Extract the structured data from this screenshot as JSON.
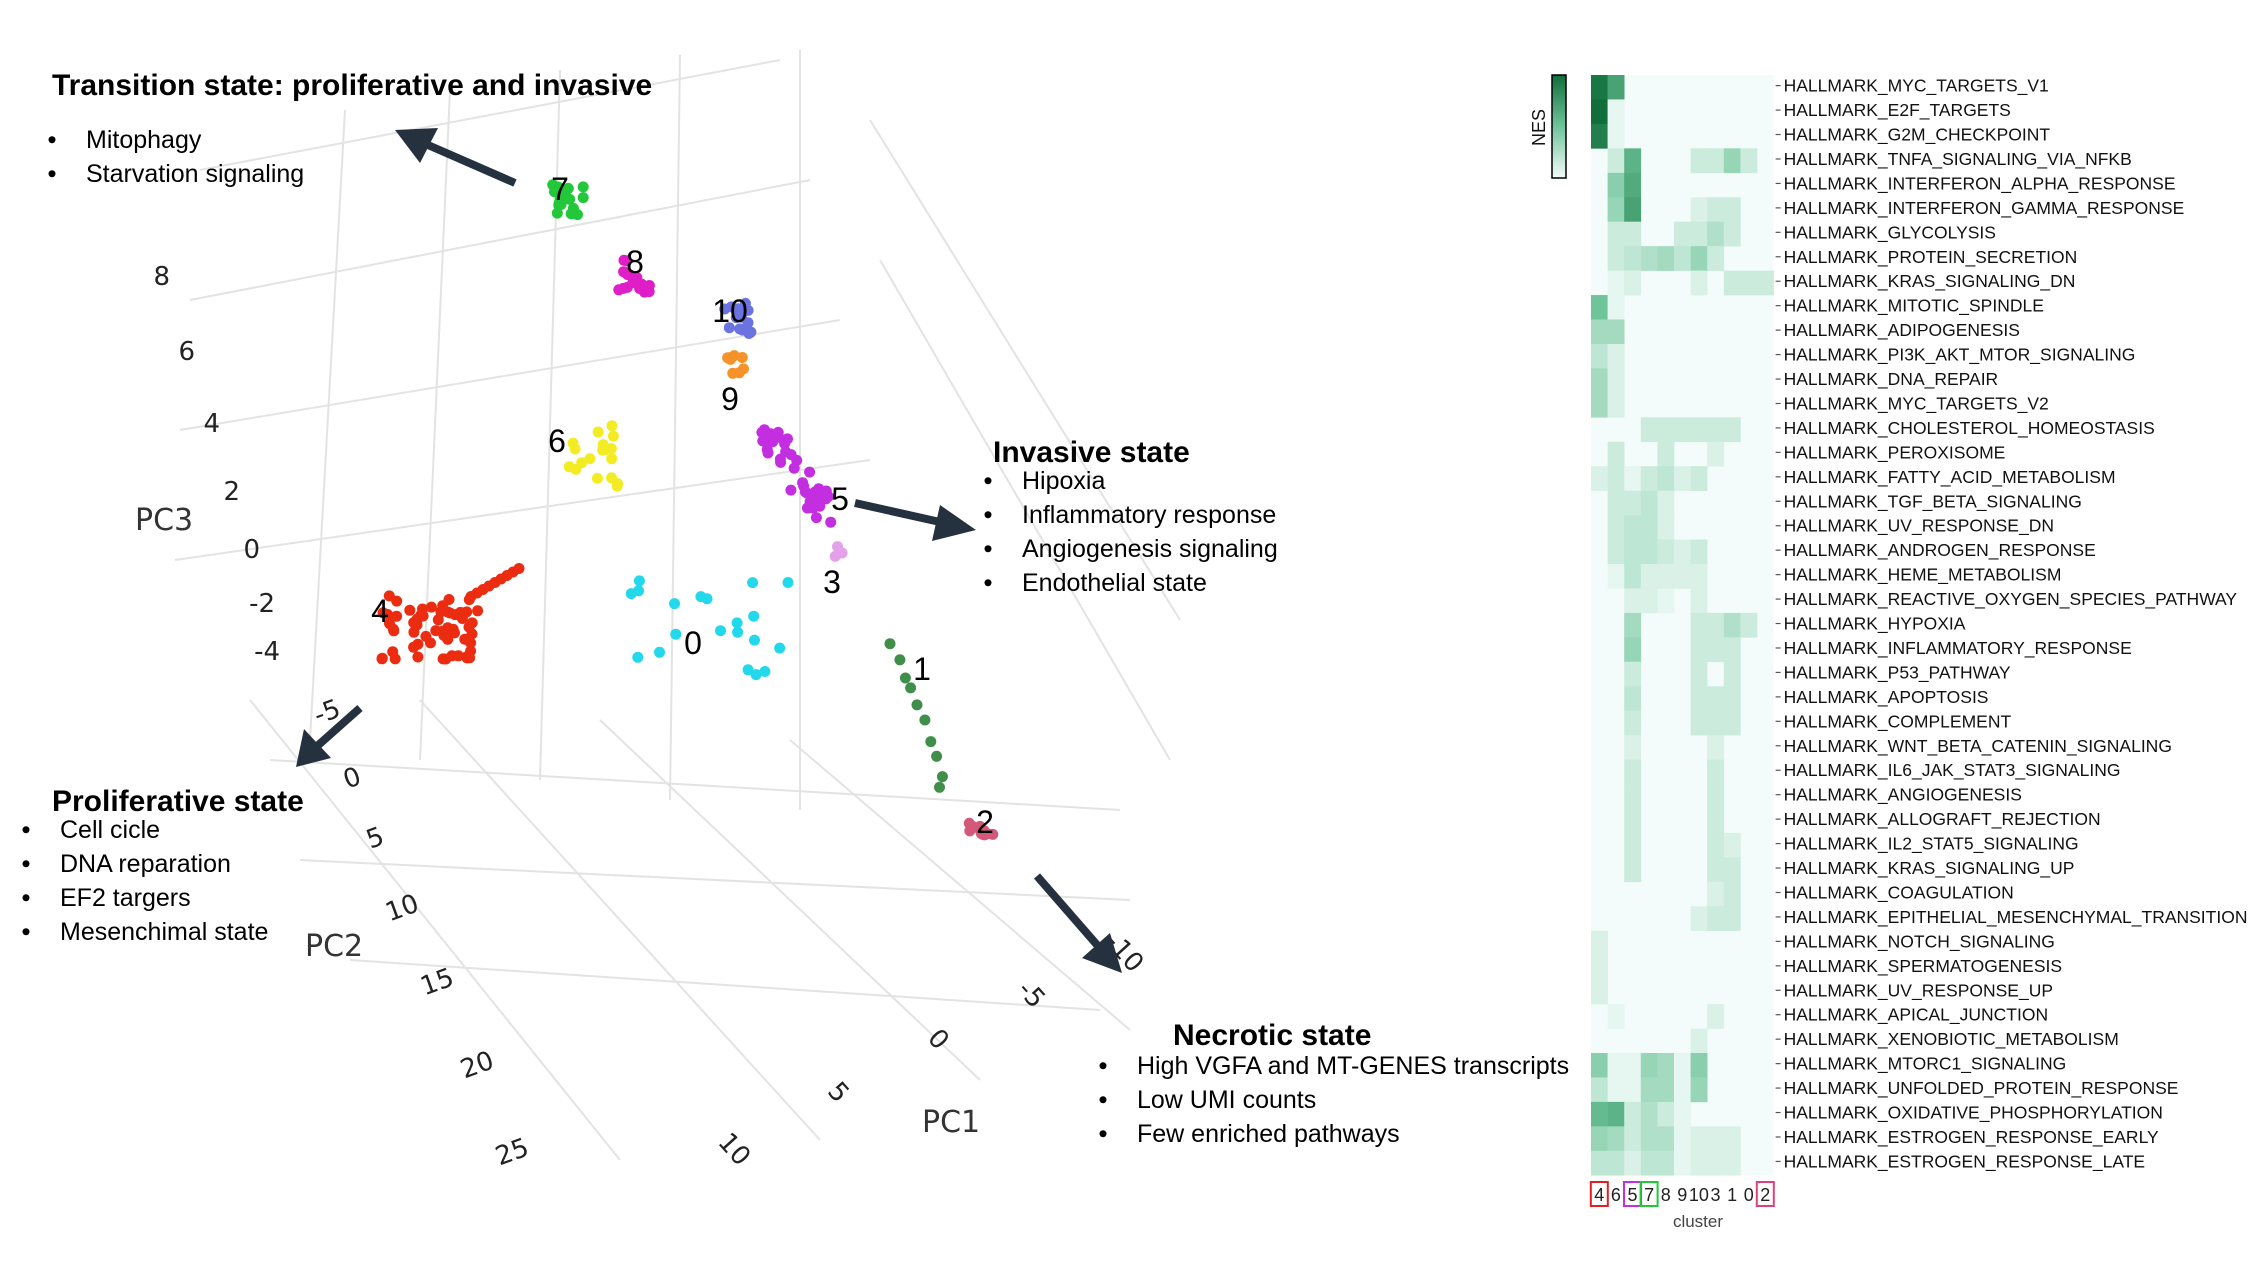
{
  "pca_plot": {
    "axis_titles": {
      "pc1": "PC1",
      "pc2": "PC2",
      "pc3": "PC3"
    },
    "pc1_ticks": [
      "-10",
      "-5",
      "0",
      "5",
      "10"
    ],
    "pc2_ticks": [
      "-5",
      "0",
      "5",
      "10",
      "15",
      "20",
      "25"
    ],
    "pc3_ticks": [
      "8",
      "6",
      "4",
      "2",
      "0",
      "-2",
      "-4"
    ],
    "cluster_colors": {
      "0": "#22d8ea",
      "1": "#3f8f4a",
      "2": "#d4587a",
      "3": "#e5a0ea",
      "4": "#ec2c10",
      "5": "#c22ee0",
      "6": "#f3ec25",
      "7": "#22c83a",
      "8": "#e01ec7",
      "9": "#f5922a",
      "10": "#6b73e0"
    }
  },
  "annotations": {
    "transition": {
      "title": "Transition state: proliferative and invasive",
      "items": [
        "Mitophagy",
        "Starvation signaling"
      ]
    },
    "invasive": {
      "title": "Invasive state",
      "items": [
        "Hipoxia",
        "Inflammatory response",
        "Angiogenesis signaling",
        "Endothelial state"
      ]
    },
    "proliferative": {
      "title": "Proliferative state",
      "items": [
        "Cell cicle",
        "DNA reparation",
        "EF2 targers",
        "Mesenchimal state"
      ]
    },
    "necrotic": {
      "title": "Necrotic state",
      "items": [
        "High VGFA and MT-GENES transcripts",
        "Low UMI counts",
        "Few enriched pathways"
      ]
    }
  },
  "heatmap": {
    "legend_label": "NES",
    "xlabel": "cluster",
    "clusters": [
      "4",
      "6",
      "5",
      "7",
      "8",
      "9",
      "10",
      "3",
      "1",
      "0",
      "2"
    ],
    "boxed_clusters": {
      "4": "#e02020",
      "5": "#c22ee0",
      "7": "#22c83a",
      "2": "#e0407a"
    },
    "colors": {
      "low": "#f3fcfa",
      "high": "#0f6e3a"
    }
  },
  "chart_data": [
    {
      "type": "scatter",
      "title": "",
      "xlabel": "PC1",
      "ylabel": "PC2",
      "zlabel": "PC3",
      "xlim": [
        -10,
        10
      ],
      "ylim": [
        -5,
        25
      ],
      "zlim": [
        -5,
        8
      ],
      "grid": true,
      "series": [
        {
          "name": "4",
          "centroid": [
            2,
            -2,
            -3.5
          ]
        },
        {
          "name": "6",
          "centroid": [
            0,
            -1,
            1.5
          ]
        },
        {
          "name": "0",
          "centroid": [
            1,
            4,
            -4
          ]
        },
        {
          "name": "7",
          "centroid": [
            -7,
            -3,
            7
          ]
        },
        {
          "name": "8",
          "centroid": [
            -5,
            -2,
            6
          ]
        },
        {
          "name": "10",
          "centroid": [
            -3,
            0,
            4.5
          ]
        },
        {
          "name": "9",
          "centroid": [
            -2.5,
            0,
            3.5
          ]
        },
        {
          "name": "5",
          "centroid": [
            -2,
            2,
            1
          ]
        },
        {
          "name": "3",
          "centroid": [
            -2,
            3,
            -1
          ]
        },
        {
          "name": "1",
          "centroid": [
            -3,
            8,
            -3
          ]
        },
        {
          "name": "2",
          "centroid": [
            -5,
            12,
            -4.5
          ]
        }
      ]
    },
    {
      "type": "heatmap",
      "xlabel": "cluster",
      "legend": "NES",
      "categories": [
        "4",
        "6",
        "5",
        "7",
        "8",
        "9",
        "10",
        "3",
        "1",
        "0",
        "2"
      ],
      "rows": [
        {
          "name": "HALLMARK_MYC_TARGETS_V1",
          "values": [
            0.95,
            0.7,
            0,
            0,
            0,
            0,
            0,
            0,
            0,
            0,
            0
          ]
        },
        {
          "name": "HALLMARK_E2F_TARGETS",
          "values": [
            1.0,
            0.05,
            0,
            0,
            0,
            0,
            0,
            0,
            0,
            0,
            0
          ]
        },
        {
          "name": "HALLMARK_G2M_CHECKPOINT",
          "values": [
            0.9,
            0.05,
            0,
            0,
            0,
            0,
            0,
            0,
            0,
            0,
            0
          ]
        },
        {
          "name": "HALLMARK_TNFA_SIGNALING_VIA_NFKB",
          "values": [
            0,
            0.15,
            0.6,
            0,
            0,
            0,
            0.15,
            0.15,
            0.35,
            0.15,
            0
          ]
        },
        {
          "name": "HALLMARK_INTERFERON_ALPHA_RESPONSE",
          "values": [
            0,
            0.4,
            0.65,
            0,
            0,
            0,
            0,
            0,
            0,
            0,
            0
          ]
        },
        {
          "name": "HALLMARK_INTERFERON_GAMMA_RESPONSE",
          "values": [
            0,
            0.35,
            0.7,
            0,
            0,
            0,
            0.1,
            0.15,
            0.15,
            0,
            0
          ]
        },
        {
          "name": "HALLMARK_GLYCOLYSIS",
          "values": [
            0,
            0.15,
            0.15,
            0,
            0,
            0.15,
            0.15,
            0.25,
            0.15,
            0,
            0
          ]
        },
        {
          "name": "HALLMARK_PROTEIN_SECRETION",
          "values": [
            0,
            0.15,
            0.2,
            0.25,
            0.3,
            0.2,
            0.35,
            0.15,
            0,
            0,
            0
          ]
        },
        {
          "name": "HALLMARK_KRAS_SIGNALING_DN",
          "values": [
            0,
            0.05,
            0.1,
            0,
            0,
            0,
            0.1,
            0,
            0.15,
            0.15,
            0.15
          ]
        },
        {
          "name": "HALLMARK_MITOTIC_SPINDLE",
          "values": [
            0.5,
            0.05,
            0,
            0,
            0,
            0,
            0,
            0,
            0,
            0,
            0
          ]
        },
        {
          "name": "HALLMARK_ADIPOGENESIS",
          "values": [
            0.3,
            0.3,
            0,
            0,
            0,
            0,
            0,
            0,
            0,
            0,
            0
          ]
        },
        {
          "name": "HALLMARK_PI3K_AKT_MTOR_SIGNALING",
          "values": [
            0.2,
            0.1,
            0,
            0,
            0,
            0,
            0,
            0,
            0,
            0,
            0
          ]
        },
        {
          "name": "HALLMARK_DNA_REPAIR",
          "values": [
            0.3,
            0.1,
            0,
            0,
            0,
            0,
            0,
            0,
            0,
            0,
            0
          ]
        },
        {
          "name": "HALLMARK_MYC_TARGETS_V2",
          "values": [
            0.3,
            0.1,
            0,
            0,
            0,
            0,
            0,
            0,
            0,
            0,
            0
          ]
        },
        {
          "name": "HALLMARK_CHOLESTEROL_HOMEOSTASIS",
          "values": [
            0,
            0,
            0,
            0.15,
            0.15,
            0.15,
            0.15,
            0.15,
            0.15,
            0,
            0
          ]
        },
        {
          "name": "HALLMARK_PEROXISOME",
          "values": [
            0,
            0.15,
            0,
            0,
            0.15,
            0,
            0,
            0.1,
            0,
            0,
            0
          ]
        },
        {
          "name": "HALLMARK_FATTY_ACID_METABOLISM",
          "values": [
            0.1,
            0.15,
            0.05,
            0.15,
            0.2,
            0.1,
            0.15,
            0,
            0,
            0,
            0
          ]
        },
        {
          "name": "HALLMARK_TGF_BETA_SIGNALING",
          "values": [
            0,
            0.15,
            0.15,
            0.2,
            0.1,
            0,
            0,
            0,
            0,
            0,
            0
          ]
        },
        {
          "name": "HALLMARK_UV_RESPONSE_DN",
          "values": [
            0,
            0.15,
            0.2,
            0.2,
            0.1,
            0,
            0,
            0,
            0,
            0,
            0
          ]
        },
        {
          "name": "HALLMARK_ANDROGEN_RESPONSE",
          "values": [
            0,
            0.15,
            0.2,
            0.2,
            0.15,
            0.1,
            0.15,
            0,
            0,
            0,
            0
          ]
        },
        {
          "name": "HALLMARK_HEME_METABOLISM",
          "values": [
            0,
            0.05,
            0.2,
            0.1,
            0.1,
            0.1,
            0.1,
            0,
            0,
            0,
            0
          ]
        },
        {
          "name": "HALLMARK_REACTIVE_OXYGEN_SPECIES_PATHWAY",
          "values": [
            0,
            0,
            0.1,
            0.1,
            0.05,
            0,
            0.1,
            0,
            0,
            0,
            0
          ]
        },
        {
          "name": "HALLMARK_HYPOXIA",
          "values": [
            0,
            0,
            0.3,
            0,
            0,
            0,
            0.15,
            0.15,
            0.25,
            0.15,
            0
          ]
        },
        {
          "name": "HALLMARK_INFLAMMATORY_RESPONSE",
          "values": [
            0,
            0,
            0.35,
            0,
            0,
            0,
            0.15,
            0.15,
            0.15,
            0,
            0
          ]
        },
        {
          "name": "HALLMARK_P53_PATHWAY",
          "values": [
            0,
            0,
            0.15,
            0,
            0,
            0,
            0.15,
            0,
            0.15,
            0,
            0
          ]
        },
        {
          "name": "HALLMARK_APOPTOSIS",
          "values": [
            0,
            0,
            0.2,
            0,
            0,
            0,
            0.15,
            0.15,
            0.15,
            0,
            0
          ]
        },
        {
          "name": "HALLMARK_COMPLEMENT",
          "values": [
            0,
            0,
            0.15,
            0,
            0,
            0,
            0.15,
            0.15,
            0.15,
            0,
            0
          ]
        },
        {
          "name": "HALLMARK_WNT_BETA_CATENIN_SIGNALING",
          "values": [
            0,
            0,
            0.1,
            0,
            0,
            0,
            0,
            0.1,
            0,
            0,
            0
          ]
        },
        {
          "name": "HALLMARK_IL6_JAK_STAT3_SIGNALING",
          "values": [
            0,
            0,
            0.15,
            0,
            0,
            0,
            0,
            0.15,
            0,
            0,
            0
          ]
        },
        {
          "name": "HALLMARK_ANGIOGENESIS",
          "values": [
            0,
            0,
            0.15,
            0,
            0,
            0,
            0,
            0.15,
            0,
            0,
            0
          ]
        },
        {
          "name": "HALLMARK_ALLOGRAFT_REJECTION",
          "values": [
            0,
            0,
            0.15,
            0,
            0,
            0,
            0,
            0.15,
            0,
            0,
            0
          ]
        },
        {
          "name": "HALLMARK_IL2_STAT5_SIGNALING",
          "values": [
            0,
            0,
            0.15,
            0,
            0,
            0,
            0,
            0.15,
            0.1,
            0,
            0
          ]
        },
        {
          "name": "HALLMARK_KRAS_SIGNALING_UP",
          "values": [
            0,
            0,
            0.15,
            0,
            0,
            0,
            0,
            0.15,
            0.15,
            0,
            0
          ]
        },
        {
          "name": "HALLMARK_COAGULATION",
          "values": [
            0,
            0,
            0,
            0,
            0,
            0,
            0,
            0.1,
            0.15,
            0,
            0
          ]
        },
        {
          "name": "HALLMARK_EPITHELIAL_MESENCHYMAL_TRANSITION",
          "values": [
            0,
            0,
            0,
            0,
            0,
            0,
            0.1,
            0.15,
            0.15,
            0,
            0
          ]
        },
        {
          "name": "HALLMARK_NOTCH_SIGNALING",
          "values": [
            0.1,
            0,
            0,
            0,
            0,
            0,
            0,
            0,
            0,
            0,
            0
          ]
        },
        {
          "name": "HALLMARK_SPERMATOGENESIS",
          "values": [
            0.1,
            0,
            0,
            0,
            0,
            0,
            0,
            0,
            0,
            0,
            0
          ]
        },
        {
          "name": "HALLMARK_UV_RESPONSE_UP",
          "values": [
            0.1,
            0,
            0,
            0,
            0,
            0,
            0,
            0,
            0,
            0,
            0
          ]
        },
        {
          "name": "HALLMARK_APICAL_JUNCTION",
          "values": [
            0,
            0.05,
            0,
            0,
            0,
            0,
            0,
            0.1,
            0,
            0,
            0
          ]
        },
        {
          "name": "HALLMARK_XENOBIOTIC_METABOLISM",
          "values": [
            0,
            0,
            0,
            0,
            0,
            0,
            0.1,
            0,
            0,
            0,
            0
          ]
        },
        {
          "name": "HALLMARK_MTORC1_SIGNALING",
          "values": [
            0.4,
            0.05,
            0.05,
            0.35,
            0.3,
            0.05,
            0.4,
            0,
            0,
            0,
            0
          ]
        },
        {
          "name": "HALLMARK_UNFOLDED_PROTEIN_RESPONSE",
          "values": [
            0.2,
            0.05,
            0.05,
            0.3,
            0.3,
            0.05,
            0.35,
            0,
            0,
            0,
            0
          ]
        },
        {
          "name": "HALLMARK_OXIDATIVE_PHOSPHORYLATION",
          "values": [
            0.55,
            0.6,
            0.15,
            0.25,
            0.15,
            0.05,
            0,
            0,
            0,
            0,
            0
          ]
        },
        {
          "name": "HALLMARK_ESTROGEN_RESPONSE_EARLY",
          "values": [
            0.35,
            0.3,
            0.15,
            0.25,
            0.25,
            0.05,
            0.1,
            0.1,
            0.1,
            0,
            0
          ]
        },
        {
          "name": "HALLMARK_ESTROGEN_RESPONSE_LATE",
          "values": [
            0.2,
            0.2,
            0.1,
            0.2,
            0.2,
            0.05,
            0.1,
            0.1,
            0.1,
            0,
            0
          ]
        }
      ]
    }
  ]
}
